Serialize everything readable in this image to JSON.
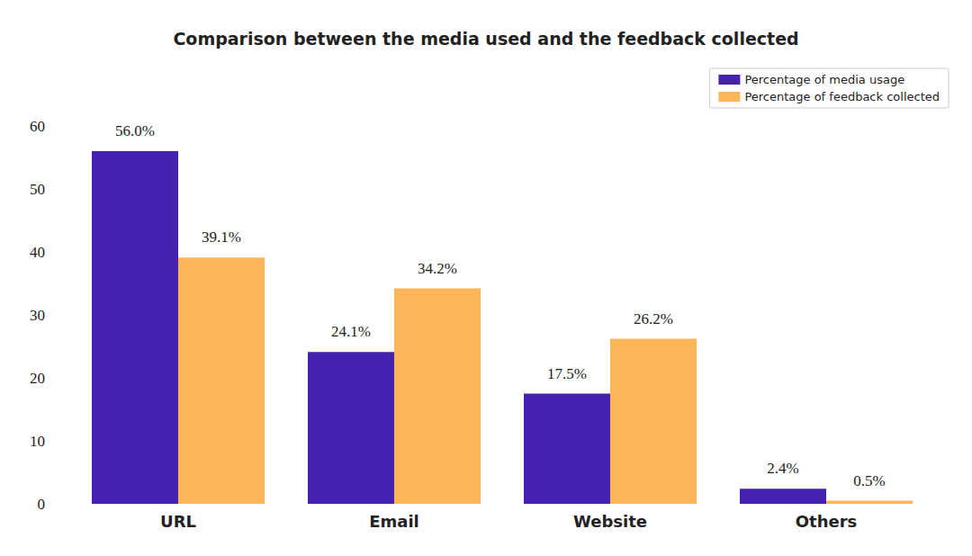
{
  "chart_data": {
    "type": "bar",
    "title": "Comparison between the media used and the feedback collected",
    "categories": [
      "URL",
      "Email",
      "Website",
      "Others"
    ],
    "series": [
      {
        "name": "Percentage of media usage",
        "color": "#4421af",
        "values": [
          56.0,
          24.1,
          17.5,
          2.4
        ],
        "value_labels": [
          "56.0%",
          "24.1%",
          "17.5%",
          "2.4%"
        ]
      },
      {
        "name": "Percentage of feedback collected",
        "color": "#fdb55a",
        "values": [
          39.1,
          34.2,
          26.2,
          0.5
        ],
        "value_labels": [
          "39.1%",
          "34.2%",
          "26.2%",
          "0.5%"
        ]
      }
    ],
    "ylim": [
      0,
      60
    ],
    "yticks": [
      0,
      10,
      20,
      30,
      40,
      50,
      60
    ],
    "grid": false,
    "legend": "upper right",
    "data_labels": true
  }
}
